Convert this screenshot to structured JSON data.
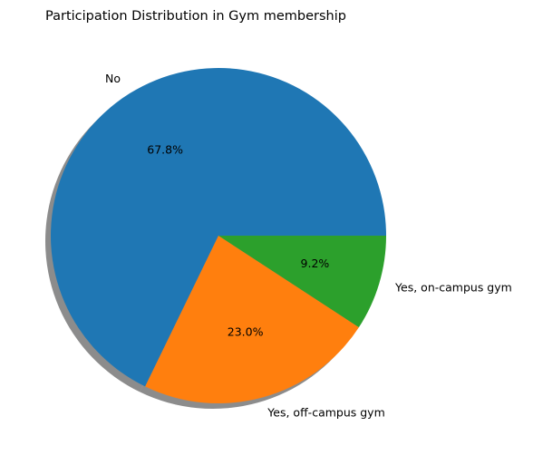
{
  "chart_data": {
    "type": "pie",
    "title": "Participation Distribution in Gym membership",
    "categories": [
      "No",
      "Yes, off-campus gym",
      "Yes, on-campus gym"
    ],
    "values": [
      67.8,
      23.0,
      9.2
    ],
    "value_labels": [
      "67.8%",
      "23.0%",
      "9.2%"
    ],
    "colors": [
      "#1f77b4",
      "#ff7f0e",
      "#2ca02c"
    ],
    "start_angle_deg": 0,
    "direction": "counterclockwise",
    "shadow": true,
    "legend": "none"
  }
}
